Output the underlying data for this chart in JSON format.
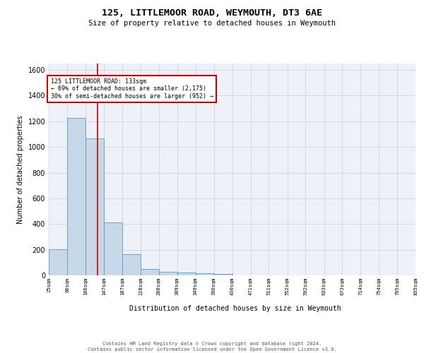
{
  "title": "125, LITTLEMOOR ROAD, WEYMOUTH, DT3 6AE",
  "subtitle": "Size of property relative to detached houses in Weymouth",
  "xlabel": "Distribution of detached houses by size in Weymouth",
  "ylabel": "Number of detached properties",
  "bar_edges": [
    25,
    66,
    106,
    147,
    187,
    228,
    268,
    309,
    349,
    390,
    430,
    471,
    511,
    552,
    592,
    633,
    673,
    714,
    754,
    795,
    835
  ],
  "bar_heights": [
    205,
    1225,
    1065,
    410,
    165,
    48,
    25,
    20,
    15,
    13,
    0,
    0,
    0,
    0,
    0,
    0,
    0,
    0,
    0,
    0
  ],
  "bar_color": "#c8d8e8",
  "bar_edge_color": "#5a9cc4",
  "grid_color": "#d0d8e8",
  "bg_color": "#eef2f8",
  "red_line_x": 133,
  "annotation_text": "125 LITTLEMOOR ROAD: 133sqm\n← 69% of detached houses are smaller (2,175)\n30% of semi-detached houses are larger (952) →",
  "annotation_box_color": "#ffffff",
  "annotation_border_color": "#cc0000",
  "ylim": [
    0,
    1650
  ],
  "yticks": [
    0,
    200,
    400,
    600,
    800,
    1000,
    1200,
    1400,
    1600
  ],
  "tick_labels": [
    "25sqm",
    "66sqm",
    "106sqm",
    "147sqm",
    "187sqm",
    "228sqm",
    "268sqm",
    "309sqm",
    "349sqm",
    "390sqm",
    "430sqm",
    "471sqm",
    "511sqm",
    "552sqm",
    "592sqm",
    "633sqm",
    "673sqm",
    "714sqm",
    "754sqm",
    "795sqm",
    "835sqm"
  ],
  "footer": "Contains HM Land Registry data © Crown copyright and database right 2024.\nContains public sector information licensed under the Open Government Licence v3.0.",
  "title_fontsize": 9.5,
  "subtitle_fontsize": 7.5,
  "ylabel_fontsize": 7,
  "ytick_fontsize": 7,
  "xtick_fontsize": 5,
  "xlabel_fontsize": 7,
  "footer_fontsize": 5,
  "annot_fontsize": 6
}
